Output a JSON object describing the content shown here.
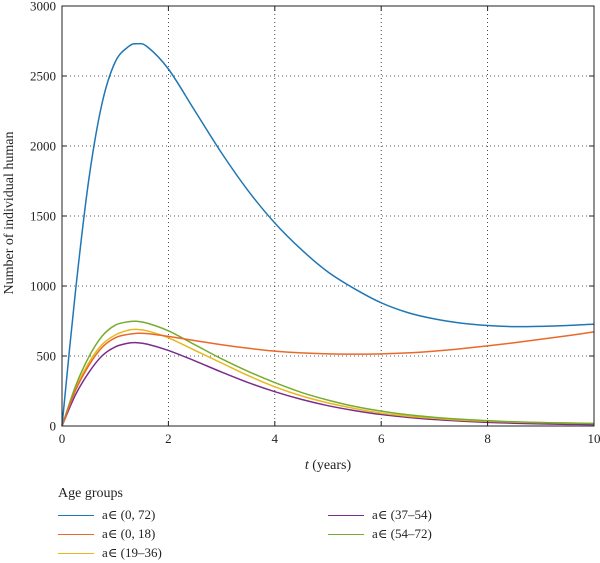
{
  "chart_data": {
    "type": "line",
    "title": "",
    "xlabel_italic": "t",
    "xlabel_rest": " (years)",
    "ylabel": "Number of individual human",
    "xlim": [
      0,
      10
    ],
    "ylim": [
      0,
      3000
    ],
    "xticks": [
      0,
      2,
      4,
      6,
      8,
      10
    ],
    "yticks": [
      0,
      500,
      1000,
      1500,
      2000,
      2500,
      3000
    ],
    "grid": true,
    "legend_title": "Age groups",
    "legend_placement": "below",
    "x": [
      0,
      0.25,
      0.5,
      0.75,
      1,
      1.25,
      1.4,
      1.6,
      2,
      2.5,
      3,
      3.5,
      4,
      4.5,
      5,
      5.5,
      6,
      6.5,
      7,
      7.5,
      8,
      8.5,
      9,
      9.5,
      10
    ],
    "series": [
      {
        "name": "a∈ (0, 72)",
        "color": "#1f77b4",
        "values": [
          0,
          950,
          1750,
          2300,
          2600,
          2710,
          2730,
          2710,
          2550,
          2250,
          1950,
          1680,
          1450,
          1260,
          1100,
          980,
          880,
          810,
          765,
          735,
          718,
          710,
          712,
          718,
          728
        ]
      },
      {
        "name": "a∈ (0, 18)",
        "color": "#e8692a",
        "values": [
          0,
          250,
          430,
          560,
          630,
          655,
          662,
          660,
          640,
          610,
          580,
          555,
          535,
          522,
          515,
          513,
          515,
          522,
          535,
          552,
          572,
          595,
          620,
          645,
          672
        ]
      },
      {
        "name": "a∈ (19–36)",
        "color": "#e8b71c",
        "values": [
          0,
          260,
          450,
          580,
          650,
          685,
          690,
          680,
          630,
          540,
          450,
          360,
          280,
          215,
          165,
          125,
          92,
          70,
          55,
          42,
          34,
          28,
          24,
          21,
          19
        ]
      },
      {
        "name": "a∈ (37–54)",
        "color": "#7b2d8e",
        "values": [
          0,
          220,
          380,
          500,
          565,
          592,
          595,
          585,
          540,
          465,
          385,
          310,
          245,
          190,
          145,
          110,
          82,
          62,
          46,
          35,
          26,
          20,
          15,
          12,
          10
        ]
      },
      {
        "name": "a∈ (54–72)",
        "color": "#77ac30",
        "values": [
          0,
          280,
          490,
          640,
          720,
          745,
          748,
          735,
          680,
          580,
          480,
          390,
          310,
          240,
          185,
          140,
          106,
          80,
          62,
          48,
          38,
          30,
          25,
          21,
          18
        ]
      }
    ]
  }
}
